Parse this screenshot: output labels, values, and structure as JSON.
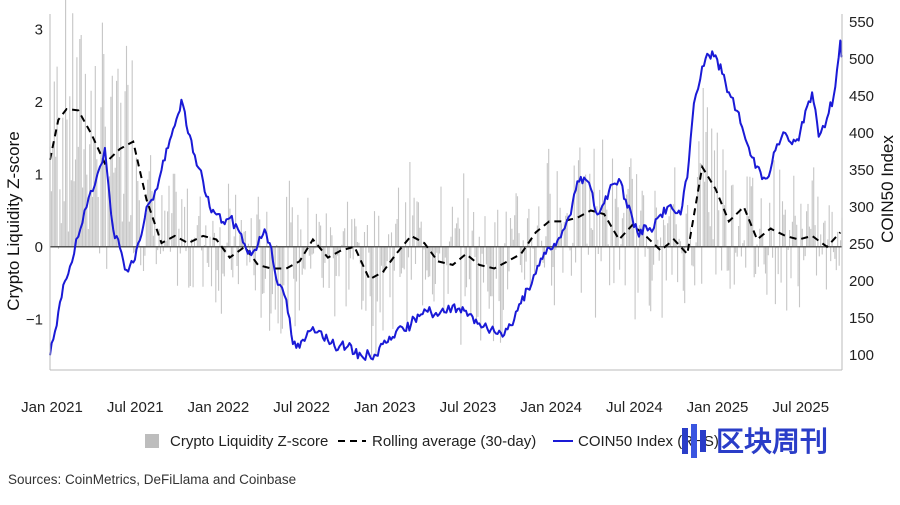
{
  "chart_data": {
    "type": "line",
    "ylabel_left": "Crypto Liquidity Z-score",
    "ylabel_right": "COIN50 Index",
    "yticks_left": [
      "3",
      "2",
      "1",
      "0",
      "−1"
    ],
    "yticks_right": [
      "550",
      "500",
      "450",
      "400",
      "350",
      "300",
      "250",
      "200",
      "150",
      "100"
    ],
    "xticks": [
      "Jan 2021",
      "Jul 2021",
      "Jan 2022",
      "Jul 2022",
      "Jan 2023",
      "Jul 2023",
      "Jan 2024",
      "Jul 2024",
      "Jan 2025",
      "Jul 2025"
    ],
    "ylim_left": [
      -1.7,
      3.1
    ],
    "ylim_right": [
      80,
      550
    ],
    "xlim": [
      2021.0,
      2025.76
    ],
    "legend": [
      {
        "label": "Crypto Liquidity Z-score",
        "style": "bar",
        "color": "#bdbdbd"
      },
      {
        "label": "Rolling average (30-day)",
        "style": "dashed",
        "color": "#000000"
      },
      {
        "label": "COIN50 Index (RHS)",
        "style": "line",
        "color": "#1a1ad6"
      }
    ],
    "series": [
      {
        "name": "Rolling average (30-day)",
        "axis": "left",
        "points": [
          [
            2021.0,
            1.2
          ],
          [
            2021.05,
            1.75
          ],
          [
            2021.1,
            1.9
          ],
          [
            2021.17,
            1.88
          ],
          [
            2021.25,
            1.55
          ],
          [
            2021.33,
            1.15
          ],
          [
            2021.42,
            1.35
          ],
          [
            2021.5,
            1.45
          ],
          [
            2021.58,
            0.65
          ],
          [
            2021.67,
            0.05
          ],
          [
            2021.75,
            0.15
          ],
          [
            2021.83,
            0.05
          ],
          [
            2021.92,
            0.15
          ],
          [
            2022.0,
            0.1
          ],
          [
            2022.08,
            -0.15
          ],
          [
            2022.17,
            0.0
          ],
          [
            2022.25,
            -0.25
          ],
          [
            2022.33,
            -0.3
          ],
          [
            2022.42,
            -0.3
          ],
          [
            2022.5,
            -0.2
          ],
          [
            2022.58,
            0.1
          ],
          [
            2022.67,
            -0.15
          ],
          [
            2022.75,
            -0.05
          ],
          [
            2022.83,
            0.0
          ],
          [
            2022.92,
            -0.45
          ],
          [
            2023.0,
            -0.35
          ],
          [
            2023.08,
            -0.1
          ],
          [
            2023.17,
            0.15
          ],
          [
            2023.25,
            0.05
          ],
          [
            2023.33,
            -0.2
          ],
          [
            2023.42,
            -0.25
          ],
          [
            2023.5,
            -0.1
          ],
          [
            2023.58,
            -0.25
          ],
          [
            2023.67,
            -0.3
          ],
          [
            2023.75,
            -0.2
          ],
          [
            2023.83,
            -0.1
          ],
          [
            2023.92,
            0.2
          ],
          [
            2024.0,
            0.35
          ],
          [
            2024.08,
            0.35
          ],
          [
            2024.17,
            0.4
          ],
          [
            2024.25,
            0.5
          ],
          [
            2024.33,
            0.45
          ],
          [
            2024.42,
            0.1
          ],
          [
            2024.5,
            0.3
          ],
          [
            2024.58,
            0.15
          ],
          [
            2024.67,
            -0.05
          ],
          [
            2024.75,
            0.1
          ],
          [
            2024.83,
            -0.1
          ],
          [
            2024.92,
            1.1
          ],
          [
            2025.0,
            0.8
          ],
          [
            2025.08,
            0.35
          ],
          [
            2025.17,
            0.55
          ],
          [
            2025.25,
            0.1
          ],
          [
            2025.33,
            0.25
          ],
          [
            2025.42,
            0.15
          ],
          [
            2025.5,
            0.1
          ],
          [
            2025.58,
            0.15
          ],
          [
            2025.67,
            0.0
          ],
          [
            2025.75,
            0.2
          ]
        ]
      },
      {
        "name": "COIN50 Index (RHS)",
        "axis": "right",
        "points": [
          [
            2021.0,
            100
          ],
          [
            2021.04,
            140
          ],
          [
            2021.08,
            195
          ],
          [
            2021.12,
            220
          ],
          [
            2021.17,
            260
          ],
          [
            2021.22,
            300
          ],
          [
            2021.27,
            330
          ],
          [
            2021.33,
            380
          ],
          [
            2021.38,
            270
          ],
          [
            2021.42,
            245
          ],
          [
            2021.46,
            215
          ],
          [
            2021.5,
            225
          ],
          [
            2021.54,
            255
          ],
          [
            2021.58,
            300
          ],
          [
            2021.62,
            310
          ],
          [
            2021.67,
            350
          ],
          [
            2021.71,
            380
          ],
          [
            2021.75,
            410
          ],
          [
            2021.79,
            445
          ],
          [
            2021.83,
            400
          ],
          [
            2021.87,
            370
          ],
          [
            2021.92,
            335
          ],
          [
            2021.96,
            300
          ],
          [
            2022.0,
            290
          ],
          [
            2022.04,
            280
          ],
          [
            2022.08,
            285
          ],
          [
            2022.13,
            270
          ],
          [
            2022.17,
            250
          ],
          [
            2022.21,
            235
          ],
          [
            2022.25,
            250
          ],
          [
            2022.29,
            270
          ],
          [
            2022.33,
            245
          ],
          [
            2022.37,
            195
          ],
          [
            2022.42,
            175
          ],
          [
            2022.46,
            115
          ],
          [
            2022.5,
            110
          ],
          [
            2022.54,
            125
          ],
          [
            2022.58,
            138
          ],
          [
            2022.63,
            132
          ],
          [
            2022.67,
            120
          ],
          [
            2022.71,
            112
          ],
          [
            2022.75,
            115
          ],
          [
            2022.79,
            112
          ],
          [
            2022.83,
            102
          ],
          [
            2022.87,
            100
          ],
          [
            2022.92,
            100
          ],
          [
            2022.96,
            100
          ],
          [
            2023.0,
            115
          ],
          [
            2023.04,
            125
          ],
          [
            2023.08,
            132
          ],
          [
            2023.13,
            133
          ],
          [
            2023.17,
            142
          ],
          [
            2023.21,
            155
          ],
          [
            2023.25,
            162
          ],
          [
            2023.29,
            158
          ],
          [
            2023.33,
            153
          ],
          [
            2023.37,
            158
          ],
          [
            2023.42,
            167
          ],
          [
            2023.46,
            163
          ],
          [
            2023.5,
            160
          ],
          [
            2023.54,
            152
          ],
          [
            2023.58,
            143
          ],
          [
            2023.63,
            135
          ],
          [
            2023.67,
            132
          ],
          [
            2023.71,
            130
          ],
          [
            2023.75,
            135
          ],
          [
            2023.79,
            148
          ],
          [
            2023.83,
            170
          ],
          [
            2023.87,
            190
          ],
          [
            2023.92,
            210
          ],
          [
            2023.96,
            230
          ],
          [
            2024.0,
            245
          ],
          [
            2024.04,
            248
          ],
          [
            2024.08,
            268
          ],
          [
            2024.13,
            290
          ],
          [
            2024.17,
            335
          ],
          [
            2024.21,
            340
          ],
          [
            2024.25,
            325
          ],
          [
            2024.29,
            290
          ],
          [
            2024.33,
            305
          ],
          [
            2024.37,
            330
          ],
          [
            2024.42,
            338
          ],
          [
            2024.46,
            310
          ],
          [
            2024.5,
            285
          ],
          [
            2024.54,
            260
          ],
          [
            2024.58,
            275
          ],
          [
            2024.63,
            272
          ],
          [
            2024.67,
            290
          ],
          [
            2024.71,
            300
          ],
          [
            2024.75,
            295
          ],
          [
            2024.79,
            290
          ],
          [
            2024.83,
            340
          ],
          [
            2024.87,
            440
          ],
          [
            2024.92,
            490
          ],
          [
            2024.96,
            505
          ],
          [
            2025.0,
            505
          ],
          [
            2025.04,
            480
          ],
          [
            2025.08,
            455
          ],
          [
            2025.13,
            430
          ],
          [
            2025.17,
            400
          ],
          [
            2025.21,
            370
          ],
          [
            2025.25,
            355
          ],
          [
            2025.29,
            340
          ],
          [
            2025.33,
            350
          ],
          [
            2025.37,
            385
          ],
          [
            2025.42,
            400
          ],
          [
            2025.46,
            385
          ],
          [
            2025.5,
            390
          ],
          [
            2025.54,
            430
          ],
          [
            2025.58,
            455
          ],
          [
            2025.62,
            395
          ],
          [
            2025.67,
            420
          ],
          [
            2025.71,
            450
          ],
          [
            2025.75,
            525
          ],
          [
            2025.76,
            505
          ]
        ]
      }
    ]
  },
  "source_text": "Sources: CoinMetrics, DeFiLlama and Coinbase",
  "watermark_text": "区块周刊",
  "colors": {
    "bar": "#c6c6c6",
    "coin50": "#1a1ad6",
    "rolling": "#000000",
    "zero_line": "#555555"
  }
}
